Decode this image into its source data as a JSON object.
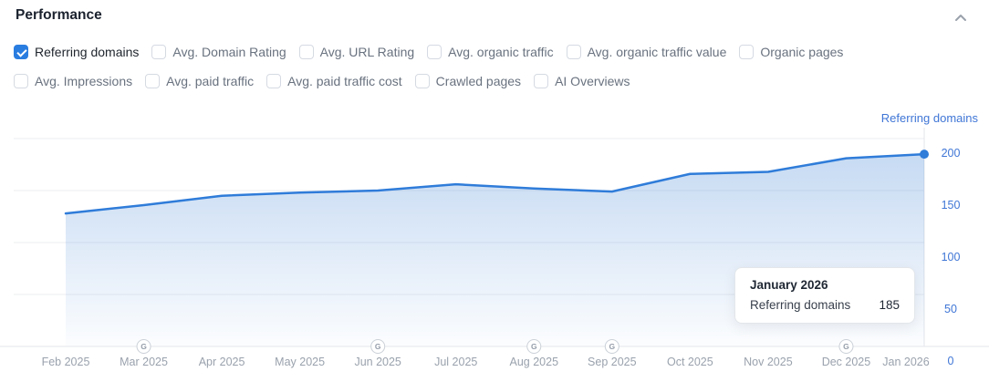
{
  "header": {
    "title": "Performance",
    "collapse_icon": "chevron-up-icon"
  },
  "filters": {
    "row1": [
      {
        "label": "Referring domains",
        "checked": true
      },
      {
        "label": "Avg. Domain Rating",
        "checked": false
      },
      {
        "label": "Avg. URL Rating",
        "checked": false
      },
      {
        "label": "Avg. organic traffic",
        "checked": false
      },
      {
        "label": "Avg. organic traffic value",
        "checked": false
      },
      {
        "label": "Organic pages",
        "checked": false
      }
    ],
    "row2": [
      {
        "label": "Avg. Impressions",
        "checked": false
      },
      {
        "label": "Avg. paid traffic",
        "checked": false
      },
      {
        "label": "Avg. paid traffic cost",
        "checked": false
      },
      {
        "label": "Crawled pages",
        "checked": false
      },
      {
        "label": "AI Overviews",
        "checked": false
      }
    ]
  },
  "chart_data": {
    "type": "area",
    "series_name": "Referring domains",
    "y_axis_label": "Referring domains",
    "categories": [
      "Feb 2025",
      "Mar 2025",
      "Apr 2025",
      "May 2025",
      "Jun 2025",
      "Jul 2025",
      "Aug 2025",
      "Sep 2025",
      "Oct 2025",
      "Nov 2025",
      "Dec 2025",
      "Jan 2026"
    ],
    "values": [
      128,
      136,
      145,
      148,
      150,
      156,
      152,
      149,
      166,
      168,
      181,
      185
    ],
    "ylim": [
      0,
      200
    ],
    "yticks": [
      0,
      50,
      100,
      150,
      200
    ],
    "grid": "horizontal",
    "legend_position": "top-right",
    "google_update_markers": {
      "label": "G",
      "months": [
        "Mar 2025",
        "Jun 2025",
        "Aug 2025",
        "Sep 2025",
        "Dec 2025"
      ]
    },
    "highlight_point": {
      "category": "Jan 2026",
      "value": 185
    },
    "colors": {
      "line": "#2f7cd9",
      "fill_top": "rgba(66,133,214,0.30)",
      "fill_bottom": "rgba(66,133,214,0.02)",
      "axis_text_blue": "#3f76d6",
      "x_label_gray": "#9aa2ad",
      "grid_line": "#ebedf0",
      "axis_line": "#e3e6ea",
      "marker_stroke": "#cbd1d8",
      "marker_text": "#959da9",
      "checkbox_checked": "#2a7de0"
    }
  },
  "tooltip": {
    "title": "January 2026",
    "metric": "Referring domains",
    "value": "185"
  }
}
